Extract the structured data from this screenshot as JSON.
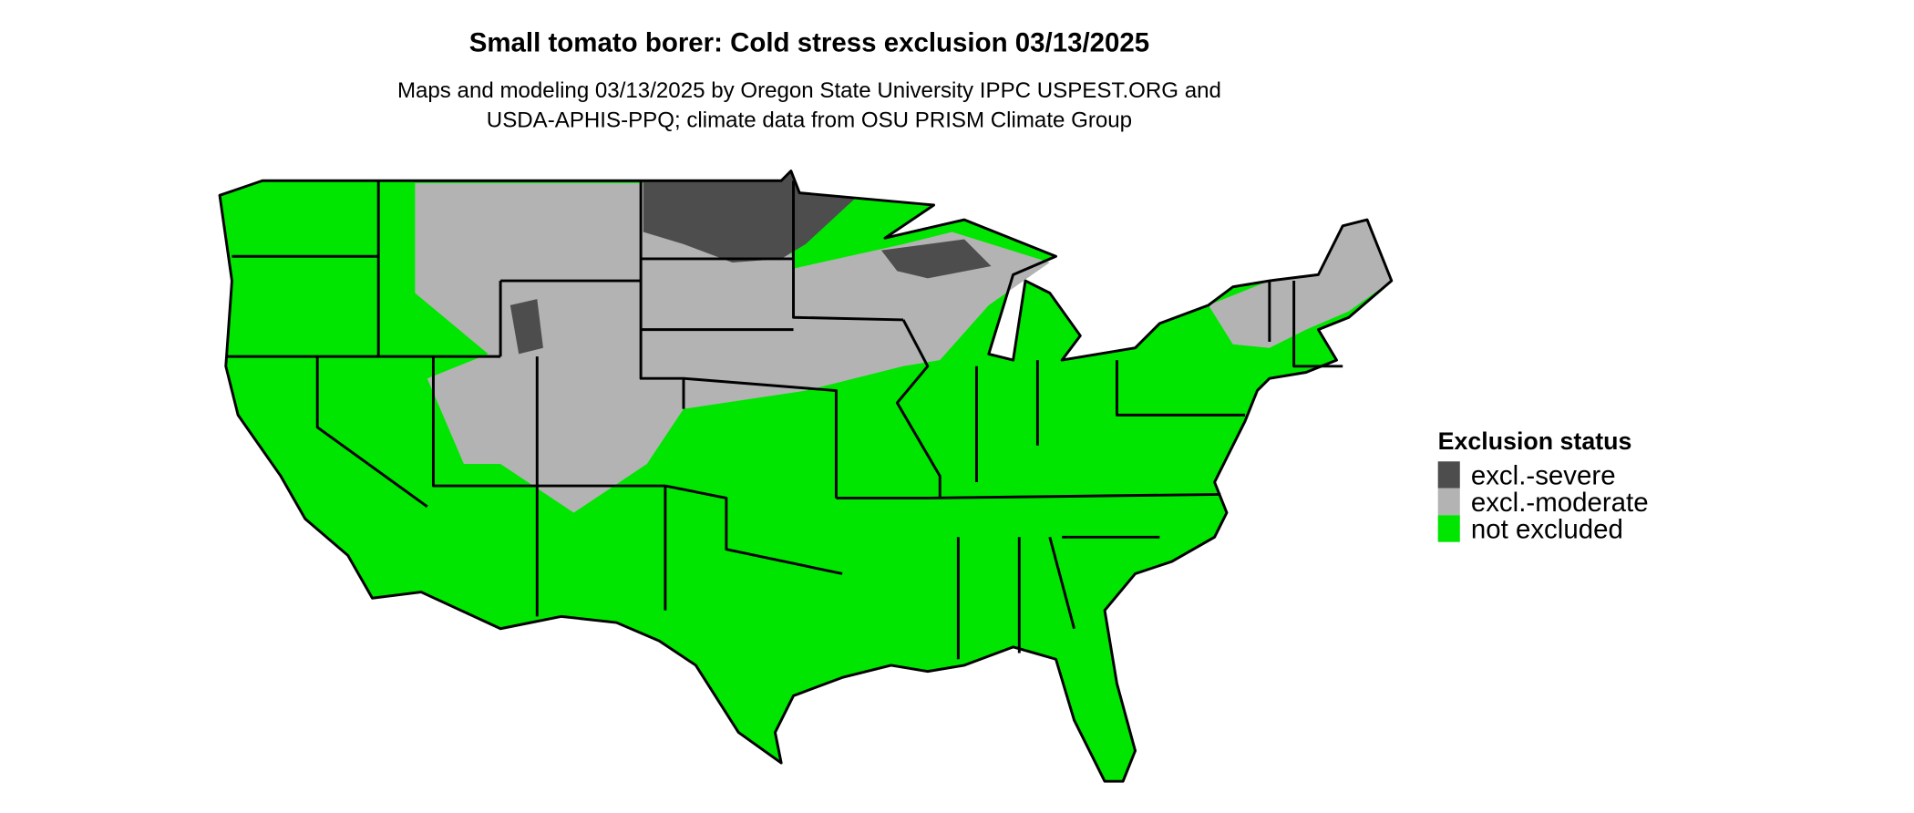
{
  "title": "Small tomato borer: Cold stress exclusion 03/13/2025",
  "subtitle": [
    "Maps and modeling 03/13/2025 by Oregon State University IPPC USPEST.ORG and",
    "USDA-APHIS-PPQ; climate data from OSU PRISM Climate Group"
  ],
  "legend": {
    "title": "Exclusion status",
    "items": [
      {
        "label": "excl.-severe",
        "color": "#4d4d4d"
      },
      {
        "label": "excl.-moderate",
        "color": "#b3b3b3"
      },
      {
        "label": "not excluded",
        "color": "#00e600"
      }
    ]
  }
}
